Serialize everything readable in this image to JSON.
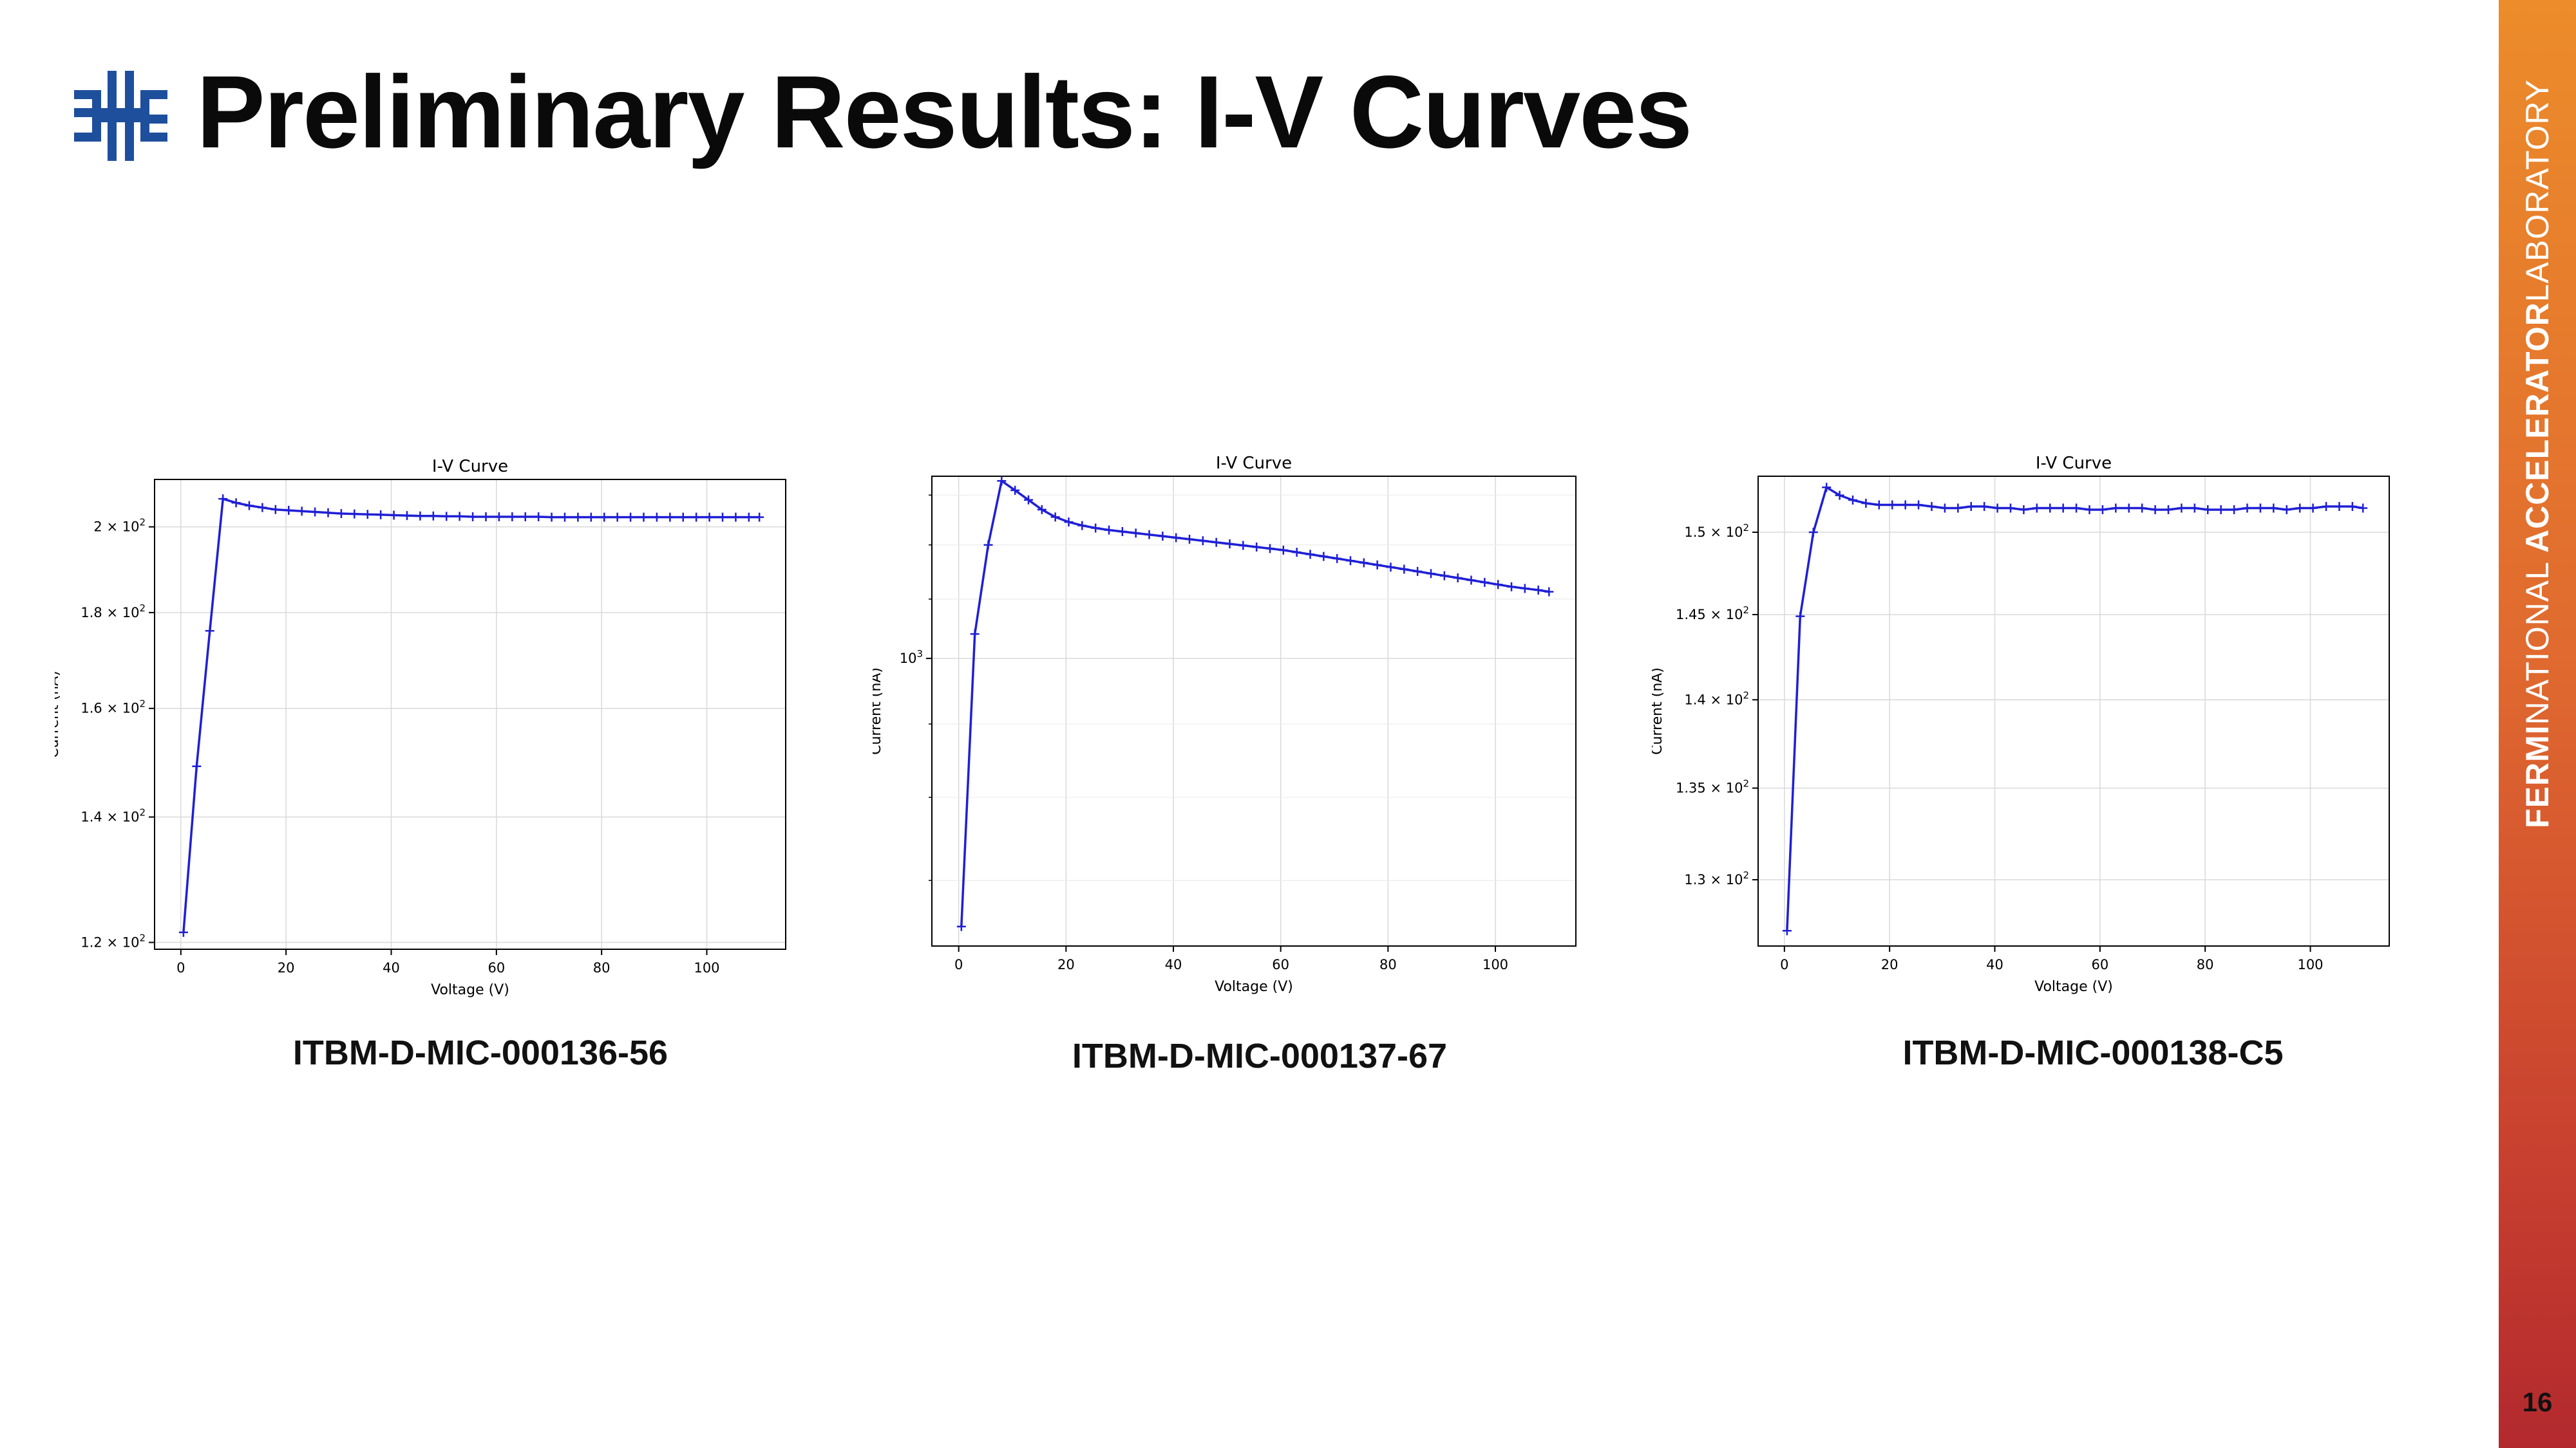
{
  "slide": {
    "title": "Preliminary Results: I-V Curves",
    "page_number": "16",
    "lab_name": {
      "bold1": "FERMI",
      "light1": "NATIONAL",
      "bold2": "ACCELERATOR",
      "light2": "LABORATORY"
    },
    "logo_icon": "fermilab-logo-icon",
    "colors": {
      "logo_blue": "#1d4f9c",
      "line": "#1f1fd6",
      "sidebar_top": "#ec8c2a",
      "sidebar_bottom": "#b3292e"
    },
    "captions": [
      "ITBM-D-MIC-000136-56",
      "ITBM-D-MIC-000137-67",
      "ITBM-D-MIC-000138-C5"
    ]
  },
  "chart_data": [
    {
      "type": "line",
      "title": "I-V Curve",
      "xlabel": "Voltage (V)",
      "ylabel": "Current (nA)",
      "yscale": "log",
      "xlim": [
        -5,
        115
      ],
      "ylim": [
        119,
        212
      ],
      "grid": true,
      "x_ticks": [
        0,
        20,
        40,
        60,
        80,
        100
      ],
      "y_ticks": [
        {
          "value": 120,
          "base": "1.2 × 10",
          "exp": "2"
        },
        {
          "value": 140,
          "base": "1.4 × 10",
          "exp": "2"
        },
        {
          "value": 160,
          "base": "1.6 × 10",
          "exp": "2"
        },
        {
          "value": 180,
          "base": "1.8 × 10",
          "exp": "2"
        },
        {
          "value": 200,
          "base": "2 × 10",
          "exp": "2"
        }
      ],
      "x": [
        0.5,
        3,
        5.5,
        8,
        10.5,
        13,
        15.5,
        18,
        20.5,
        23,
        25.5,
        28,
        30.5,
        33,
        35.5,
        38,
        40.5,
        43,
        45.5,
        48,
        50.5,
        53,
        55.5,
        58,
        60.5,
        63,
        65.5,
        68,
        70.5,
        73,
        75.5,
        78,
        80.5,
        83,
        85.5,
        88,
        90.5,
        93,
        95.5,
        98,
        100.5,
        103,
        105.5,
        108,
        110
      ],
      "y": [
        121.5,
        149,
        176,
        207,
        206,
        205.3,
        204.8,
        204.3,
        204.1,
        203.9,
        203.7,
        203.5,
        203.3,
        203.2,
        203.1,
        203.0,
        202.9,
        202.8,
        202.7,
        202.7,
        202.6,
        202.6,
        202.5,
        202.5,
        202.5,
        202.5,
        202.5,
        202.5,
        202.4,
        202.4,
        202.4,
        202.4,
        202.4,
        202.4,
        202.4,
        202.4,
        202.4,
        202.4,
        202.4,
        202.4,
        202.4,
        202.4,
        202.4,
        202.4,
        202.4
      ]
    },
    {
      "type": "line",
      "title": "I-V Curve",
      "xlabel": "Voltage (V)",
      "ylabel": "Current (nA)",
      "yscale": "log",
      "xlim": [
        -5,
        115
      ],
      "ylim": [
        630,
        1340
      ],
      "grid": true,
      "x_ticks": [
        0,
        20,
        40,
        60,
        80,
        100
      ],
      "y_ticks": [
        {
          "value": 1000,
          "base": "10",
          "exp": "3"
        }
      ],
      "y_minor_ticks": [
        700,
        800,
        900,
        1100,
        1200,
        1300
      ],
      "x": [
        0.5,
        3,
        5.5,
        8,
        10.5,
        13,
        15.5,
        18,
        20.5,
        23,
        25.5,
        28,
        30.5,
        33,
        35.5,
        38,
        40.5,
        43,
        45.5,
        48,
        50.5,
        53,
        55.5,
        58,
        60.5,
        63,
        65.5,
        68,
        70.5,
        73,
        75.5,
        78,
        80.5,
        83,
        85.5,
        88,
        90.5,
        93,
        95.5,
        98,
        100.5,
        103,
        105.5,
        108,
        110
      ],
      "y": [
        650,
        1040,
        1200,
        1330,
        1310,
        1290,
        1270,
        1255,
        1245,
        1238,
        1233,
        1229,
        1226,
        1223,
        1220,
        1217,
        1214,
        1211,
        1208,
        1205,
        1202,
        1199,
        1196,
        1193,
        1190,
        1186,
        1182,
        1178,
        1174,
        1170,
        1166,
        1162,
        1158,
        1154,
        1150,
        1146,
        1142,
        1138,
        1134,
        1130,
        1126,
        1122,
        1119,
        1116,
        1113
      ]
    },
    {
      "type": "line",
      "title": "I-V Curve",
      "xlabel": "Voltage (V)",
      "ylabel": "Current (nA)",
      "yscale": "log",
      "xlim": [
        -5,
        115
      ],
      "ylim": [
        126.5,
        153.5
      ],
      "grid": true,
      "x_ticks": [
        0,
        20,
        40,
        60,
        80,
        100
      ],
      "y_ticks": [
        {
          "value": 130,
          "base": "1.3 × 10",
          "exp": "2"
        },
        {
          "value": 135,
          "base": "1.35 × 10",
          "exp": "2"
        },
        {
          "value": 140,
          "base": "1.4 × 10",
          "exp": "2"
        },
        {
          "value": 145,
          "base": "1.45 × 10",
          "exp": "2"
        },
        {
          "value": 150,
          "base": "1.5 × 10",
          "exp": "2"
        }
      ],
      "x": [
        0.5,
        3,
        5.5,
        8,
        10.5,
        13,
        15.5,
        18,
        20.5,
        23,
        25.5,
        28,
        30.5,
        33,
        35.5,
        38,
        40.5,
        43,
        45.5,
        48,
        50.5,
        53,
        55.5,
        58,
        60.5,
        63,
        65.5,
        68,
        70.5,
        73,
        75.5,
        78,
        80.5,
        83,
        85.5,
        88,
        90.5,
        93,
        95.5,
        98,
        100.5,
        103,
        105.5,
        108,
        110
      ],
      "y": [
        127.3,
        144.9,
        150.0,
        152.8,
        152.3,
        152.0,
        151.8,
        151.7,
        151.7,
        151.7,
        151.7,
        151.6,
        151.5,
        151.5,
        151.6,
        151.6,
        151.5,
        151.5,
        151.4,
        151.5,
        151.5,
        151.5,
        151.5,
        151.4,
        151.4,
        151.5,
        151.5,
        151.5,
        151.4,
        151.4,
        151.5,
        151.5,
        151.4,
        151.4,
        151.4,
        151.5,
        151.5,
        151.5,
        151.4,
        151.5,
        151.5,
        151.6,
        151.6,
        151.6,
        151.5
      ]
    }
  ]
}
